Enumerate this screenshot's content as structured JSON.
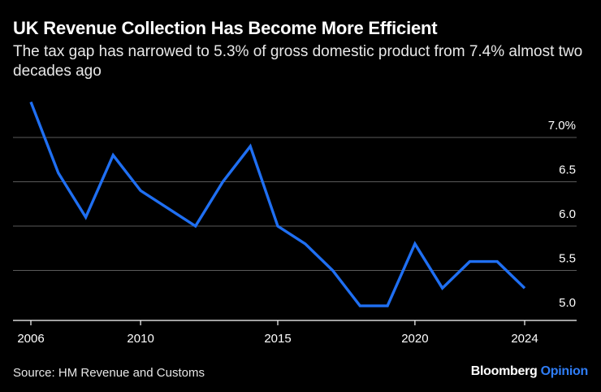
{
  "title": "UK Revenue Collection Has Become More Efficient",
  "subtitle": "The tax gap has narrowed to 5.3% of gross domestic product from 7.4% almost two decades ago",
  "source": "Source: HM Revenue and Customs",
  "brand": {
    "name": "Bloomberg",
    "suffix": "Opinion"
  },
  "colors": {
    "line": "#1f6ff2",
    "grid": "#5a5a5a",
    "axis": "#ffffff",
    "background": "#000000",
    "brand_accent": "#2f7df6"
  },
  "chart_data": {
    "type": "line",
    "series": [
      {
        "x": [
          2006,
          2007,
          2008,
          2009,
          2010,
          2011,
          2012,
          2013,
          2014,
          2015,
          2016,
          2017,
          2018,
          2019,
          2020,
          2021,
          2022,
          2023,
          2024
        ],
        "values": [
          7.4,
          6.6,
          6.1,
          6.8,
          6.4,
          6.2,
          6.0,
          6.5,
          6.9,
          6.0,
          5.8,
          5.5,
          5.1,
          5.1,
          5.8,
          5.3,
          5.6,
          5.6,
          5.3
        ]
      }
    ],
    "xlim": [
      2006,
      2024
    ],
    "ylim": [
      5.0,
      7.0
    ],
    "x_ticks": [
      2006,
      2010,
      2015,
      2020,
      2024
    ],
    "x_tick_labels": [
      "2006",
      "2010",
      "2015",
      "2020",
      "2024"
    ],
    "y_ticks": [
      5.0,
      5.5,
      6.0,
      6.5,
      7.0
    ],
    "y_tick_labels": [
      "5.0",
      "5.5",
      "6.0",
      "6.5",
      "7.0%"
    ],
    "y_axis_side": "right",
    "grid": true,
    "legend": false,
    "unit": "%"
  }
}
